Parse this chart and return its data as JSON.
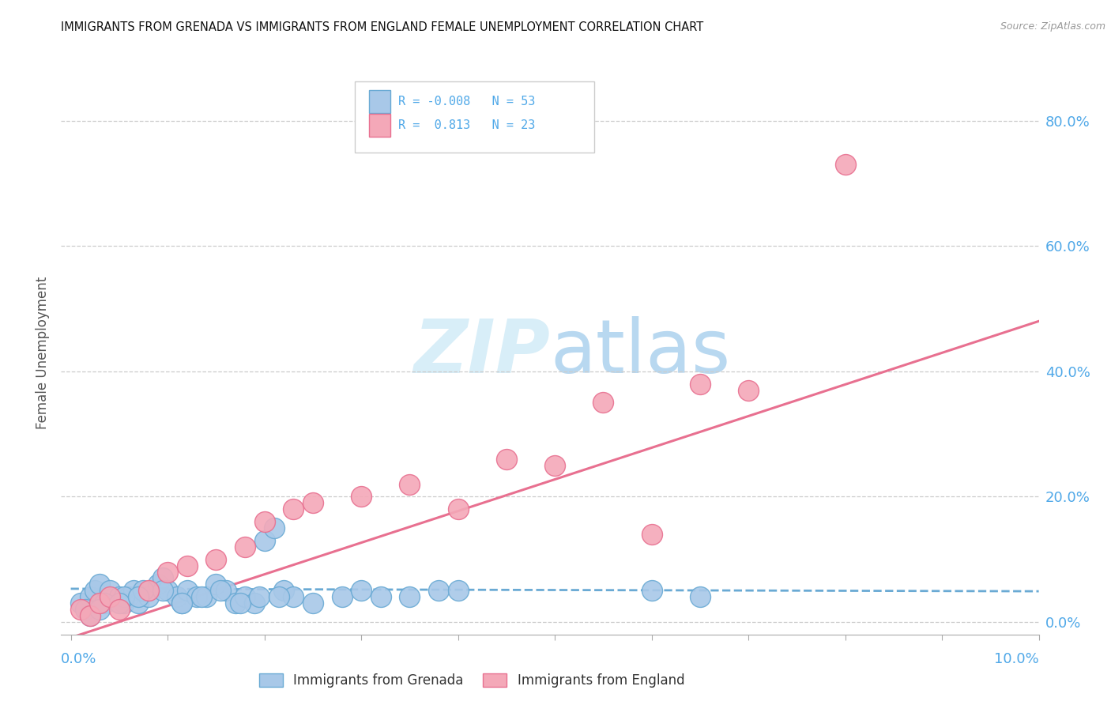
{
  "title": "IMMIGRANTS FROM GRENADA VS IMMIGRANTS FROM ENGLAND FEMALE UNEMPLOYMENT CORRELATION CHART",
  "source": "Source: ZipAtlas.com",
  "ylabel": "Female Unemployment",
  "ytick_labels": [
    "0.0%",
    "20.0%",
    "40.0%",
    "60.0%",
    "80.0%"
  ],
  "ytick_values": [
    0.0,
    20.0,
    40.0,
    60.0,
    80.0
  ],
  "xlim": [
    -0.1,
    10.0
  ],
  "ylim": [
    -2.0,
    88.0
  ],
  "color_grenada": "#a8c8e8",
  "color_england": "#f4a8b8",
  "color_grenada_edge": "#6aaad4",
  "color_england_edge": "#e87090",
  "color_axis_labels": "#4fa8e8",
  "color_title": "#111111",
  "watermark_color": "#d8eef8",
  "grenada_x": [
    0.1,
    0.2,
    0.25,
    0.3,
    0.4,
    0.5,
    0.55,
    0.6,
    0.65,
    0.7,
    0.8,
    0.9,
    0.95,
    1.0,
    1.1,
    1.15,
    1.2,
    1.3,
    1.4,
    1.5,
    1.6,
    1.7,
    1.8,
    1.9,
    2.0,
    2.1,
    2.2,
    2.3,
    2.5,
    2.8,
    3.0,
    3.2,
    3.5,
    3.8,
    4.0,
    0.15,
    0.35,
    0.55,
    0.75,
    0.95,
    1.15,
    1.35,
    1.55,
    1.75,
    1.95,
    2.15,
    6.0,
    6.5,
    0.2,
    0.3,
    0.5,
    0.7
  ],
  "grenada_y": [
    3.0,
    4.0,
    5.0,
    6.0,
    5.0,
    4.0,
    3.0,
    4.0,
    5.0,
    3.0,
    4.0,
    6.0,
    7.0,
    5.0,
    4.0,
    3.0,
    5.0,
    4.0,
    4.0,
    6.0,
    5.0,
    3.0,
    4.0,
    3.0,
    13.0,
    15.0,
    5.0,
    4.0,
    3.0,
    4.0,
    5.0,
    4.0,
    4.0,
    5.0,
    5.0,
    2.0,
    3.0,
    4.0,
    5.0,
    5.0,
    3.0,
    4.0,
    5.0,
    3.0,
    4.0,
    4.0,
    5.0,
    4.0,
    1.0,
    2.0,
    3.0,
    4.0
  ],
  "england_x": [
    0.1,
    0.2,
    0.3,
    0.4,
    0.5,
    0.8,
    1.0,
    1.2,
    1.5,
    1.8,
    2.0,
    2.3,
    2.5,
    3.0,
    3.5,
    4.0,
    4.5,
    5.0,
    5.5,
    6.0,
    6.5,
    7.0,
    8.0
  ],
  "england_y": [
    2.0,
    1.0,
    3.0,
    4.0,
    2.0,
    5.0,
    8.0,
    9.0,
    10.0,
    12.0,
    16.0,
    18.0,
    19.0,
    20.0,
    22.0,
    18.0,
    26.0,
    25.0,
    35.0,
    14.0,
    38.0,
    37.0,
    73.0
  ],
  "grenada_trend_x": [
    0.0,
    10.0
  ],
  "grenada_trend_y": [
    5.3,
    4.9
  ],
  "england_trend_x": [
    0.0,
    10.0
  ],
  "england_trend_y": [
    -2.5,
    48.0
  ]
}
